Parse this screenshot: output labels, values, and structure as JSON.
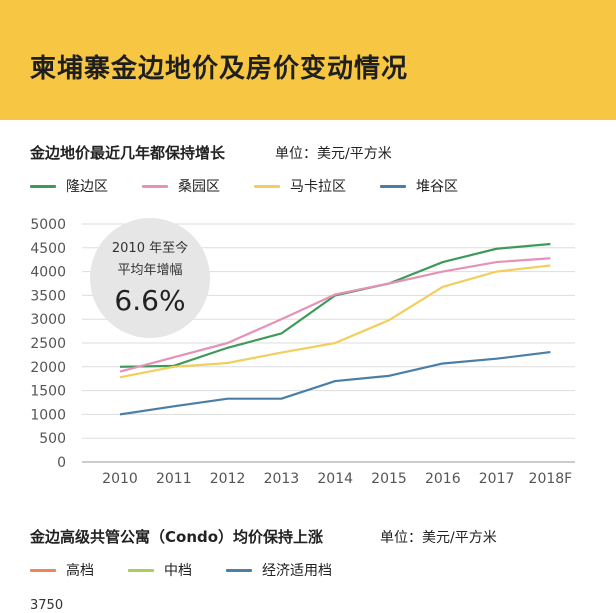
{
  "header": {
    "title": "柬埔寨金边地价及房价变动情况"
  },
  "land_section": {
    "title": "金边地价最近几年都保持增长",
    "unit": "单位：美元/平方米",
    "callout": {
      "line1": "2010 年至今",
      "line2": "平均年增幅",
      "value": "6.6%"
    }
  },
  "condo_section": {
    "title": "金边高级共管公寓（Condo）均价保持上涨",
    "unit": "单位：美元/平方米",
    "legend": [
      {
        "name": "高档",
        "color": "#f0835a"
      },
      {
        "name": "中档",
        "color": "#a8cf5a"
      },
      {
        "name": "经济适用档",
        "color": "#4a7fa8"
      }
    ],
    "y_tick_top": "3750"
  },
  "chart_data": {
    "type": "line",
    "title": "金边地价最近几年都保持增长",
    "xlabel": "",
    "ylabel": "",
    "categories": [
      "2010",
      "2011",
      "2012",
      "2013",
      "2014",
      "2015",
      "2016",
      "2017",
      "2018F"
    ],
    "yticks": [
      "0",
      "500",
      "1000",
      "1500",
      "2000",
      "2500",
      "3000",
      "3500",
      "4000",
      "4500",
      "5000"
    ],
    "ylim": [
      0,
      5000
    ],
    "grid": true,
    "legend_position": "top",
    "series": [
      {
        "name": "隆边区",
        "color": "#3e9a5a",
        "values": [
          2000,
          2020,
          2400,
          2700,
          3500,
          3750,
          4200,
          4480,
          4580
        ]
      },
      {
        "name": "桑园区",
        "color": "#e592b8",
        "values": [
          1900,
          2200,
          2500,
          3000,
          3520,
          3750,
          4000,
          4200,
          4280
        ]
      },
      {
        "name": "马卡拉区",
        "color": "#f2cf5c",
        "values": [
          1780,
          2000,
          2080,
          2300,
          2500,
          2980,
          3680,
          4000,
          4130
        ]
      },
      {
        "name": "堆谷区",
        "color": "#4b7ea6",
        "values": [
          1000,
          1170,
          1330,
          1330,
          1700,
          1810,
          2070,
          2170,
          2310
        ]
      }
    ]
  }
}
